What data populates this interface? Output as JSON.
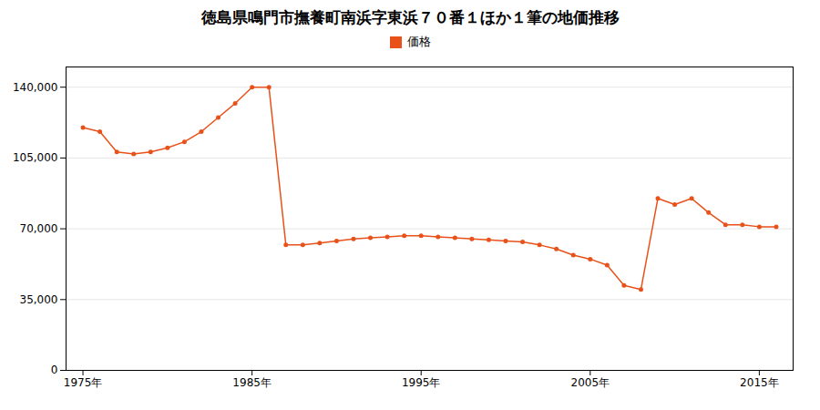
{
  "chart_data": {
    "type": "line",
    "title": "徳島県鳴門市撫養町南浜字東浜７０番１ほか１筆の地価推移",
    "x": [
      1975,
      1976,
      1977,
      1978,
      1979,
      1980,
      1981,
      1982,
      1983,
      1984,
      1985,
      1986,
      1987,
      1988,
      1989,
      1990,
      1991,
      1992,
      1993,
      1994,
      1995,
      1996,
      1997,
      1998,
      1999,
      2000,
      2001,
      2002,
      2003,
      2004,
      2005,
      2006,
      2007,
      2008,
      2009,
      2010,
      2011,
      2012,
      2013,
      2014,
      2015,
      2016
    ],
    "series": [
      {
        "name": "価格",
        "color": "#e8521a",
        "marker": "circle",
        "values": [
          120000,
          118000,
          108000,
          107000,
          108000,
          110000,
          113000,
          118000,
          125000,
          132000,
          140000,
          140000,
          62000,
          62000,
          63000,
          64000,
          65000,
          65500,
          66000,
          66500,
          66500,
          66000,
          65500,
          65000,
          64500,
          64000,
          63500,
          62000,
          60000,
          57000,
          55000,
          52000,
          42000,
          40000,
          85000,
          82000,
          85000,
          78000,
          72000,
          72000,
          71000,
          71000
        ]
      }
    ],
    "xlim": [
      1974,
      2017
    ],
    "xticks": [
      {
        "value": 1975,
        "label": "1975年"
      },
      {
        "value": 1985,
        "label": "1985年"
      },
      {
        "value": 1995,
        "label": "1995年"
      },
      {
        "value": 2005,
        "label": "2005年"
      },
      {
        "value": 2015,
        "label": "2015年"
      }
    ],
    "ylim": [
      0,
      150000
    ],
    "yticks": [
      0,
      {
        "value": 35000,
        "label": "35,000"
      },
      {
        "value": 70000,
        "label": "70,000"
      },
      {
        "value": 105000,
        "label": "105,000"
      },
      {
        "value": 140000,
        "label": "140,000"
      }
    ],
    "grid": true,
    "legend": "top"
  }
}
